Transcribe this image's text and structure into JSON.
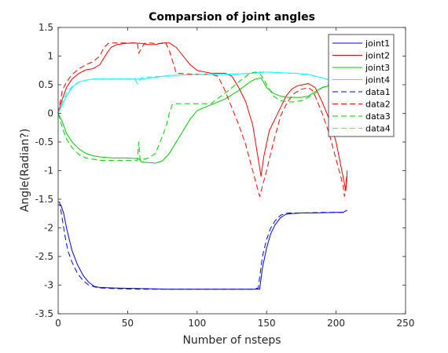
{
  "chart_data": {
    "type": "line",
    "title": "Comparsion of joint angles",
    "xlabel": "Number of nsteps",
    "ylabel": "Angle(Radian?)",
    "xlim": [
      0,
      250
    ],
    "ylim": [
      -3.5,
      1.5
    ],
    "xticks": [
      "0",
      "50",
      "100",
      "150",
      "200",
      "250"
    ],
    "yticks": [
      "-3.5",
      "-3",
      "-2.5",
      "-2",
      "-1.5",
      "-1",
      "-0.5",
      "0",
      "0.5",
      "1",
      "1.5"
    ],
    "grid": false,
    "legend_position": "top-right",
    "series": [
      {
        "name": "joint1",
        "color": "#0000ff",
        "style": "solid",
        "x": [
          0,
          2,
          4,
          6,
          8,
          10,
          14,
          18,
          22,
          26,
          30,
          40,
          60,
          80,
          100,
          120,
          135,
          145,
          147,
          150,
          153,
          156,
          160,
          164,
          168,
          175,
          185,
          200,
          205,
          208
        ],
        "y": [
          -1.6,
          -1.6,
          -1.75,
          -2.0,
          -2.2,
          -2.4,
          -2.65,
          -2.83,
          -2.95,
          -3.02,
          -3.04,
          -3.05,
          -3.06,
          -3.07,
          -3.07,
          -3.07,
          -3.07,
          -3.07,
          -2.7,
          -2.35,
          -2.1,
          -1.95,
          -1.82,
          -1.76,
          -1.75,
          -1.74,
          -1.74,
          -1.73,
          -1.73,
          -1.69
        ]
      },
      {
        "name": "joint2",
        "color": "#ff0000",
        "style": "solid",
        "x": [
          0,
          3,
          6,
          10,
          15,
          20,
          25,
          30,
          35,
          38,
          42,
          48,
          55,
          60,
          65,
          70,
          75,
          80,
          85,
          90,
          95,
          100,
          110,
          120,
          125,
          130,
          135,
          140,
          144,
          146,
          148,
          152,
          156,
          160,
          164,
          168,
          172,
          176,
          180,
          185,
          190,
          195,
          200,
          205,
          207,
          208
        ],
        "y": [
          0.0,
          0.25,
          0.45,
          0.6,
          0.7,
          0.76,
          0.78,
          0.85,
          1.05,
          1.15,
          1.2,
          1.22,
          1.23,
          1.22,
          1.2,
          1.2,
          1.23,
          1.23,
          1.15,
          1.0,
          0.85,
          0.75,
          0.7,
          0.7,
          0.65,
          0.45,
          0.2,
          -0.2,
          -0.8,
          -1.1,
          -0.75,
          -0.3,
          -0.1,
          0.1,
          0.3,
          0.42,
          0.48,
          0.5,
          0.52,
          0.45,
          0.2,
          -0.1,
          -0.5,
          -1.1,
          -1.35,
          -1.05
        ]
      },
      {
        "name": "joint3",
        "color": "#00cc00",
        "style": "solid",
        "x": [
          0,
          3,
          6,
          10,
          15,
          20,
          25,
          30,
          35,
          40,
          50,
          58,
          60,
          65,
          70,
          75,
          80,
          85,
          90,
          95,
          100,
          110,
          120,
          130,
          138,
          142,
          146,
          150,
          155,
          160,
          165,
          170,
          175,
          180,
          185,
          190,
          195,
          200,
          205,
          208
        ],
        "y": [
          0.0,
          -0.15,
          -0.35,
          -0.5,
          -0.62,
          -0.7,
          -0.74,
          -0.76,
          -0.77,
          -0.78,
          -0.78,
          -0.79,
          -0.85,
          -0.86,
          -0.87,
          -0.83,
          -0.7,
          -0.5,
          -0.3,
          -0.1,
          0.05,
          0.15,
          0.25,
          0.4,
          0.55,
          0.6,
          0.62,
          0.45,
          0.35,
          0.3,
          0.28,
          0.28,
          0.28,
          0.3,
          0.38,
          0.45,
          0.48,
          0.52,
          0.58,
          0.62
        ]
      },
      {
        "name": "joint4",
        "color": "#00ffff",
        "style": "solid",
        "x": [
          0,
          3,
          6,
          10,
          15,
          20,
          25,
          30,
          40,
          55,
          60,
          70,
          80,
          100,
          120,
          140,
          150,
          160,
          170,
          180,
          190,
          200,
          208
        ],
        "y": [
          0.0,
          0.15,
          0.3,
          0.45,
          0.55,
          0.58,
          0.6,
          0.6,
          0.6,
          0.6,
          0.6,
          0.63,
          0.66,
          0.68,
          0.68,
          0.7,
          0.72,
          0.71,
          0.7,
          0.68,
          0.62,
          0.55,
          0.5
        ]
      },
      {
        "name": "data1",
        "color": "#0000ff",
        "style": "dashed",
        "x": [
          0,
          1,
          3,
          5,
          7,
          10,
          14,
          18,
          22,
          26,
          30,
          40,
          60,
          80,
          100,
          120,
          140,
          144,
          147,
          150,
          153,
          156,
          160,
          163,
          166,
          175,
          190,
          205,
          207
        ],
        "y": [
          -1.55,
          -1.55,
          -1.85,
          -2.15,
          -2.4,
          -2.6,
          -2.8,
          -2.92,
          -3.0,
          -3.03,
          -3.05,
          -3.06,
          -3.07,
          -3.07,
          -3.07,
          -3.07,
          -3.07,
          -3.05,
          -2.5,
          -2.2,
          -2.0,
          -1.88,
          -1.78,
          -1.75,
          -1.74,
          -1.74,
          -1.73,
          -1.73,
          -1.72
        ]
      },
      {
        "name": "data2",
        "color": "#ff0000",
        "style": "dashed",
        "x": [
          0,
          3,
          6,
          10,
          15,
          20,
          25,
          30,
          33,
          36,
          40,
          50,
          57,
          58,
          62,
          65,
          70,
          75,
          77,
          80,
          85,
          100,
          110,
          115,
          120,
          125,
          130,
          135,
          140,
          145,
          150,
          155,
          160,
          165,
          170,
          175,
          180,
          183,
          185,
          190,
          195,
          200,
          205,
          206,
          208
        ],
        "y": [
          0.0,
          0.4,
          0.55,
          0.68,
          0.78,
          0.85,
          0.9,
          1.0,
          1.15,
          1.22,
          1.23,
          1.23,
          1.23,
          1.05,
          1.22,
          1.23,
          1.22,
          1.22,
          1.25,
          1.1,
          0.7,
          0.68,
          0.68,
          0.65,
          0.4,
          0.1,
          -0.2,
          -0.55,
          -1.0,
          -1.45,
          -1.0,
          -0.5,
          -0.05,
          0.2,
          0.35,
          0.42,
          0.45,
          0.4,
          0.3,
          0.0,
          -0.35,
          -0.8,
          -1.25,
          -1.45,
          -1.0
        ]
      },
      {
        "name": "data3",
        "color": "#00cc00",
        "style": "dashed",
        "x": [
          0,
          3,
          6,
          10,
          15,
          20,
          25,
          30,
          40,
          50,
          57,
          58,
          59,
          60,
          62,
          65,
          70,
          75,
          78,
          80,
          82,
          85,
          100,
          110,
          120,
          130,
          138,
          142,
          145,
          148,
          150,
          155,
          160,
          165,
          170,
          175,
          180,
          185,
          190,
          195,
          200,
          205,
          208
        ],
        "y": [
          0.0,
          -0.25,
          -0.45,
          -0.6,
          -0.72,
          -0.78,
          -0.8,
          -0.82,
          -0.82,
          -0.82,
          -0.82,
          -0.5,
          -0.82,
          -0.8,
          -0.8,
          -0.78,
          -0.7,
          -0.4,
          -0.2,
          0.0,
          0.15,
          0.17,
          0.17,
          0.17,
          0.35,
          0.55,
          0.7,
          0.72,
          0.7,
          0.6,
          0.5,
          0.3,
          0.22,
          0.2,
          0.2,
          0.22,
          0.28,
          0.35,
          0.45,
          0.5,
          0.55,
          0.6,
          0.62
        ]
      },
      {
        "name": "data4",
        "color": "#00ffff",
        "style": "dashed",
        "x": [
          0,
          3,
          6,
          10,
          15,
          20,
          25,
          30,
          40,
          55,
          57,
          60,
          62,
          70,
          80,
          100,
          120,
          140,
          145,
          150,
          160,
          170,
          180,
          190,
          200,
          208
        ],
        "y": [
          0.0,
          0.2,
          0.35,
          0.47,
          0.55,
          0.58,
          0.6,
          0.6,
          0.6,
          0.6,
          0.52,
          0.62,
          0.63,
          0.64,
          0.66,
          0.68,
          0.68,
          0.7,
          0.72,
          0.72,
          0.71,
          0.7,
          0.68,
          0.62,
          0.55,
          0.5
        ]
      }
    ]
  }
}
